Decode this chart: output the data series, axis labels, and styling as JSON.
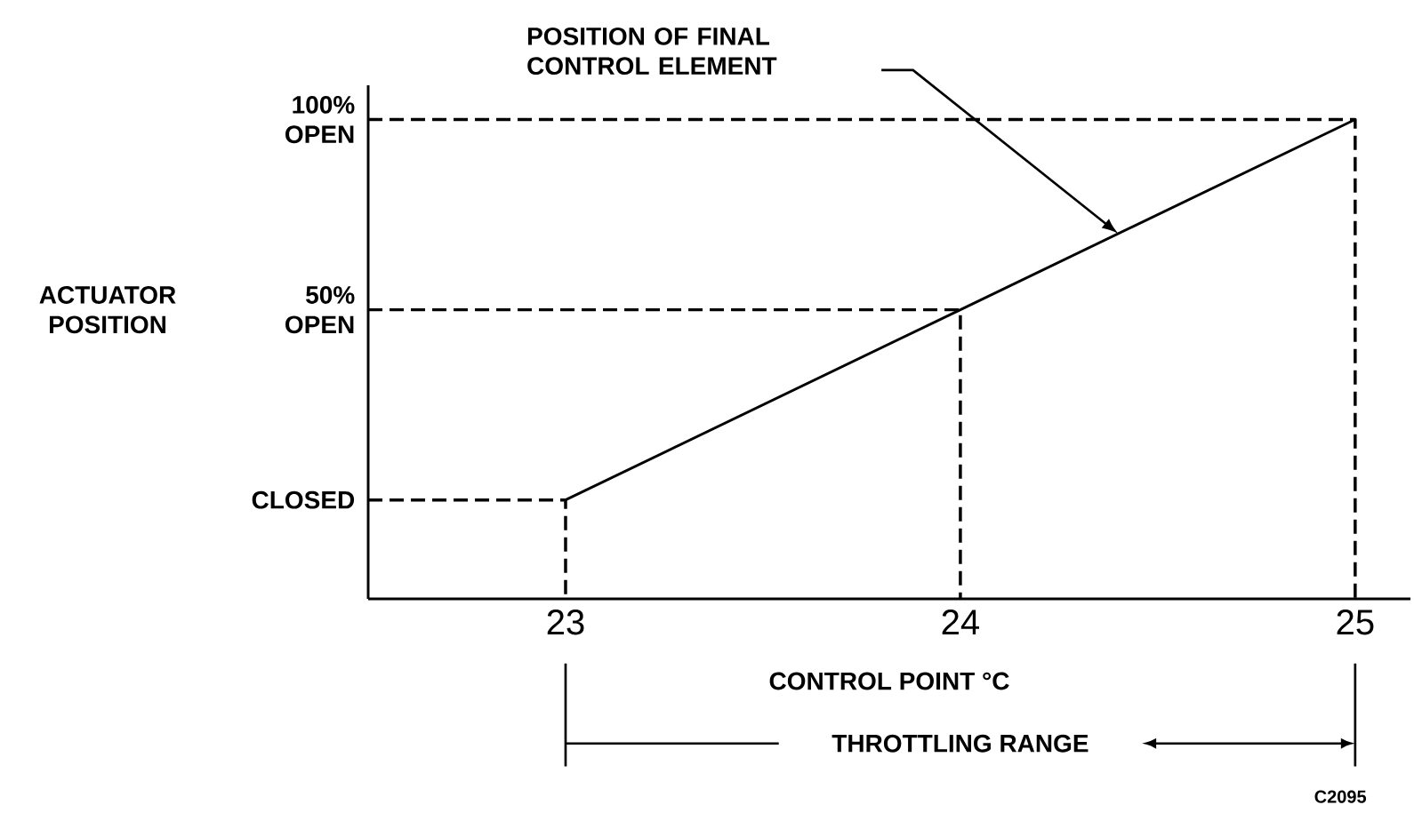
{
  "chart_data": {
    "type": "line",
    "xlabel": "CONTROL POINT °C",
    "xlim": [
      22.5,
      25.14
    ],
    "xticks": [
      23,
      24,
      25
    ],
    "ylim": [
      -26,
      109
    ],
    "yticks": [
      {
        "value": 0,
        "label": "CLOSED"
      },
      {
        "value": 50,
        "label": "50% OPEN"
      },
      {
        "value": 100,
        "label": "100% OPEN"
      }
    ],
    "marker": "none",
    "line_style": "solid",
    "series": [
      {
        "color": "#000000",
        "x": [
          23,
          24,
          25
        ],
        "values": [
          0,
          50,
          100
        ]
      },
      {
        "color": "#000000",
        "line_style": "dashed",
        "x": [
          22.5,
          23,
          23
        ],
        "values": [
          0,
          0,
          -26
        ]
      },
      {
        "color": "#000000",
        "line_style": "dashed",
        "x": [
          22.5,
          24,
          24
        ],
        "values": [
          50,
          50,
          -26
        ]
      },
      {
        "color": "#000000",
        "line_style": "dashed",
        "x": [
          22.5,
          25,
          25
        ],
        "values": [
          100,
          100,
          -26
        ]
      }
    ],
    "annotations": [
      "POSITION OF FINAL CONTROL ELEMENT",
      "THROTTLING RANGE",
      "C2095",
      "ACTUATOR POSITION"
    ]
  }
}
